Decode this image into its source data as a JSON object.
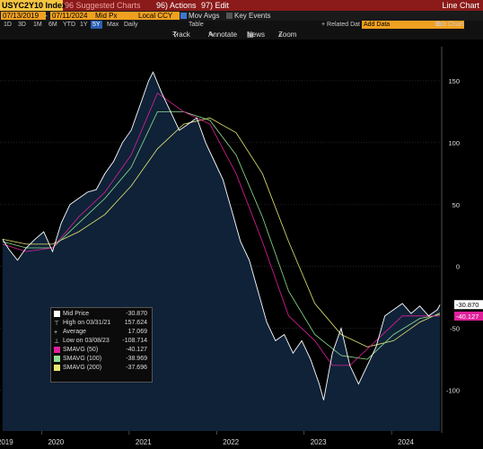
{
  "header": {
    "ticker": "USYC2Y10 Index",
    "suggested": "96 Suggested Charts",
    "actions": "96) Actions",
    "edit": "97) Edit",
    "title": "Line Chart"
  },
  "toolbar": {
    "start_date": "07/13/2019",
    "end_date": "07/11/2024",
    "field": "Mid Px",
    "currency": "Local CCY",
    "mov_avgs": "Mov Avgs",
    "key_events": "Key Events",
    "periods": [
      "1D",
      "3D",
      "1M",
      "6M",
      "YTD",
      "1Y",
      "5Y",
      "Max"
    ],
    "selected_period": "5Y",
    "frequency": "Daily",
    "table": "Table",
    "related": "+ Related Dat",
    "add_data": "Add Data",
    "edit_chart": "Edit Chart"
  },
  "tools": {
    "track": "Track",
    "annotate": "Annotate",
    "news": "News",
    "zoom": "Zoom"
  },
  "colors": {
    "price": "#ffffff",
    "sma50": "#e0209a",
    "sma100": "#8fe08f",
    "sma200": "#e8e870",
    "area": "#0f2238",
    "grid": "#3a3a3a"
  },
  "legend": [
    {
      "label": "Mid Price",
      "value": "-30.870",
      "swatch": "#ffffff"
    },
    {
      "label": "High on 03/31/21",
      "value": "157.624",
      "swatch": "none",
      "symbol": "⊤"
    },
    {
      "label": "Average",
      "value": "17.069",
      "swatch": "none",
      "symbol": "+"
    },
    {
      "label": "Low on 03/08/23",
      "value": "-108.714",
      "swatch": "none",
      "symbol": "⊥"
    },
    {
      "label": "SMAVG (50)",
      "value": "-40.127",
      "swatch": "#e0209a"
    },
    {
      "label": "SMAVG (100)",
      "value": "-38.969",
      "swatch": "#8fe08f"
    },
    {
      "label": "SMAVG (200)",
      "value": "-37.696",
      "swatch": "#e8e870"
    }
  ],
  "chart_data": {
    "type": "line",
    "title": "USYC2Y10 Index",
    "x_labels": [
      "2019",
      "2020",
      "2021",
      "2022",
      "2023",
      "2024"
    ],
    "ylim": [
      -133,
      163
    ],
    "yticks": [
      150,
      100,
      50,
      0,
      -50,
      -100
    ],
    "last_price_label": "-30.870",
    "sma50_label": "-40.127",
    "series": [
      {
        "name": "Mid Price",
        "x": [
          2019.53,
          2019.6,
          2019.7,
          2019.8,
          2019.9,
          2020.0,
          2020.1,
          2020.2,
          2020.3,
          2020.4,
          2020.5,
          2020.6,
          2020.7,
          2020.8,
          2020.9,
          2021.0,
          2021.1,
          2021.2,
          2021.25,
          2021.35,
          2021.45,
          2021.55,
          2021.65,
          2021.75,
          2021.85,
          2021.95,
          2022.05,
          2022.15,
          2022.25,
          2022.35,
          2022.45,
          2022.55,
          2022.65,
          2022.75,
          2022.85,
          2022.95,
          2023.05,
          2023.15,
          2023.2,
          2023.3,
          2023.4,
          2023.5,
          2023.6,
          2023.7,
          2023.8,
          2023.9,
          2024.0,
          2024.1,
          2024.2,
          2024.3,
          2024.4,
          2024.5,
          2024.53
        ],
        "values": [
          22,
          14,
          5,
          15,
          22,
          28,
          12,
          35,
          50,
          55,
          60,
          62,
          75,
          85,
          100,
          110,
          130,
          150,
          157,
          140,
          125,
          110,
          115,
          120,
          100,
          85,
          70,
          45,
          20,
          5,
          -20,
          -45,
          -60,
          -55,
          -70,
          -60,
          -75,
          -95,
          -108,
          -70,
          -50,
          -80,
          -95,
          -80,
          -65,
          -40,
          -35,
          -30,
          -38,
          -32,
          -40,
          -35,
          -31
        ],
        "color": "#ffffff"
      },
      {
        "name": "SMAVG (50)",
        "x": [
          2019.53,
          2019.8,
          2020.1,
          2020.4,
          2020.7,
          2021.0,
          2021.3,
          2021.6,
          2021.9,
          2022.2,
          2022.5,
          2022.8,
          2023.1,
          2023.3,
          2023.5,
          2023.8,
          2024.1,
          2024.4,
          2024.53
        ],
        "values": [
          18,
          12,
          15,
          40,
          60,
          90,
          140,
          125,
          115,
          75,
          20,
          -40,
          -60,
          -80,
          -80,
          -60,
          -40,
          -40,
          -40.127
        ],
        "color": "#e0209a"
      },
      {
        "name": "SMAVG (100)",
        "x": [
          2019.53,
          2019.8,
          2020.1,
          2020.4,
          2020.7,
          2021.0,
          2021.3,
          2021.6,
          2021.9,
          2022.2,
          2022.5,
          2022.8,
          2023.1,
          2023.4,
          2023.7,
          2024.0,
          2024.3,
          2024.53
        ],
        "values": [
          20,
          15,
          15,
          35,
          55,
          80,
          125,
          125,
          118,
          90,
          40,
          -20,
          -55,
          -72,
          -75,
          -55,
          -42,
          -38.969
        ],
        "color": "#8fe08f"
      },
      {
        "name": "SMAVG (200)",
        "x": [
          2019.53,
          2019.8,
          2020.1,
          2020.4,
          2020.7,
          2021.0,
          2021.3,
          2021.6,
          2021.9,
          2022.2,
          2022.5,
          2022.8,
          2023.1,
          2023.4,
          2023.7,
          2024.0,
          2024.3,
          2024.53
        ],
        "values": [
          22,
          18,
          18,
          28,
          42,
          65,
          95,
          115,
          120,
          108,
          75,
          20,
          -30,
          -55,
          -65,
          -60,
          -45,
          -37.696
        ],
        "color": "#e8e870"
      }
    ]
  }
}
